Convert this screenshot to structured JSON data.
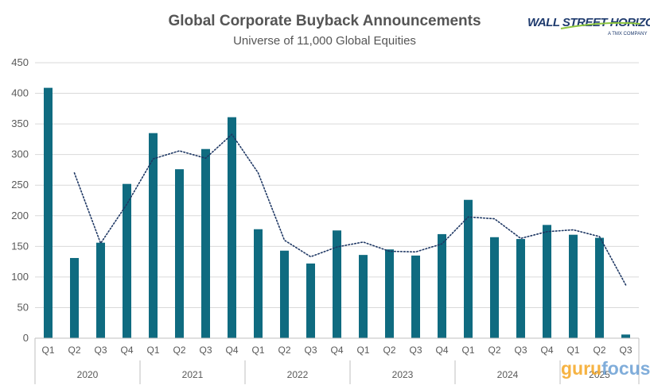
{
  "chart_data": {
    "type": "bar",
    "title": "Global Corporate Buyback Announcements",
    "subtitle": "Universe of 11,000 Global Equities",
    "xlabel": "",
    "ylabel": "",
    "ylim": [
      0,
      450
    ],
    "yticks": [
      0,
      50,
      100,
      150,
      200,
      250,
      300,
      350,
      400,
      450
    ],
    "grid": true,
    "categories": [
      "Q1",
      "Q2",
      "Q3",
      "Q4",
      "Q1",
      "Q2",
      "Q3",
      "Q4",
      "Q1",
      "Q2",
      "Q3",
      "Q4",
      "Q1",
      "Q2",
      "Q3",
      "Q4",
      "Q1",
      "Q2",
      "Q3",
      "Q4",
      "Q1",
      "Q2",
      "Q3"
    ],
    "years": [
      {
        "label": "2020",
        "count": 4
      },
      {
        "label": "2021",
        "count": 4
      },
      {
        "label": "2022",
        "count": 4
      },
      {
        "label": "2023",
        "count": 4
      },
      {
        "label": "2024",
        "count": 4
      },
      {
        "label": "2025",
        "count": 3
      }
    ],
    "series": [
      {
        "type": "bar",
        "color": "#0f6b80",
        "values": [
          409,
          131,
          156,
          252,
          335,
          276,
          309,
          361,
          178,
          143,
          122,
          176,
          136,
          145,
          135,
          170,
          226,
          165,
          162,
          185,
          169,
          164,
          6
        ]
      },
      {
        "type": "line",
        "style": "dotted",
        "color": "#1f3864",
        "values": [
          null,
          270,
          155,
          219,
          293,
          306,
          294,
          333,
          270,
          160,
          133,
          149,
          157,
          142,
          141,
          154,
          198,
          195,
          163,
          174,
          177,
          166,
          87
        ]
      }
    ]
  },
  "logo": {
    "text": "WALL STREET HORIZON",
    "subtext": "A TMX COMPANY"
  },
  "watermark": {
    "part1": "guru",
    "part2": "focus",
    "color1": "#f5a623",
    "color2": "#6a9fd4"
  }
}
